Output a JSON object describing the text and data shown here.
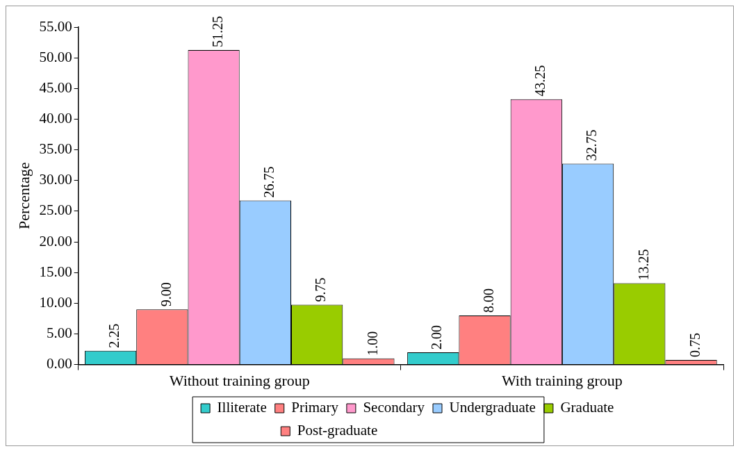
{
  "chart_data": {
    "type": "bar",
    "ylabel": "Percentage",
    "categories": [
      "Without training group",
      "With training group"
    ],
    "series": [
      {
        "name": "Illiterate",
        "color": "#33cccc",
        "values": [
          2.25,
          2.0
        ],
        "value_labels": [
          "2.25",
          "2.00"
        ]
      },
      {
        "name": "Primary",
        "color": "#ff8080",
        "values": [
          9.0,
          8.0
        ],
        "value_labels": [
          "9.00",
          "8.00"
        ]
      },
      {
        "name": "Secondary",
        "color": "#ff99cc",
        "values": [
          51.25,
          43.25
        ],
        "value_labels": [
          "51.25",
          "43.25"
        ]
      },
      {
        "name": "Undergraduate",
        "color": "#99ccff",
        "values": [
          26.75,
          32.75
        ],
        "value_labels": [
          "26.75",
          "32.75"
        ]
      },
      {
        "name": "Graduate",
        "color": "#99cc00",
        "values": [
          9.75,
          13.25
        ],
        "value_labels": [
          "9.75",
          "13.25"
        ]
      },
      {
        "name": "Post-graduate",
        "color": "#ff8080",
        "values": [
          1.0,
          0.75
        ],
        "value_labels": [
          "1.00",
          "0.75"
        ]
      }
    ],
    "ylim": [
      0,
      55
    ],
    "yticks": [
      {
        "value": 0,
        "label": "0.00"
      },
      {
        "value": 5,
        "label": "5.00"
      },
      {
        "value": 10,
        "label": "10.00"
      },
      {
        "value": 15,
        "label": "15.00"
      },
      {
        "value": 20,
        "label": "20.00"
      },
      {
        "value": 25,
        "label": "25.00"
      },
      {
        "value": 30,
        "label": "30.00"
      },
      {
        "value": 35,
        "label": "35.00"
      },
      {
        "value": 40,
        "label": "40.00"
      },
      {
        "value": 45,
        "label": "45.00"
      },
      {
        "value": 50,
        "label": "50.00"
      },
      {
        "value": 55,
        "label": "55.00"
      }
    ],
    "grid": false,
    "legend": "bottom"
  }
}
